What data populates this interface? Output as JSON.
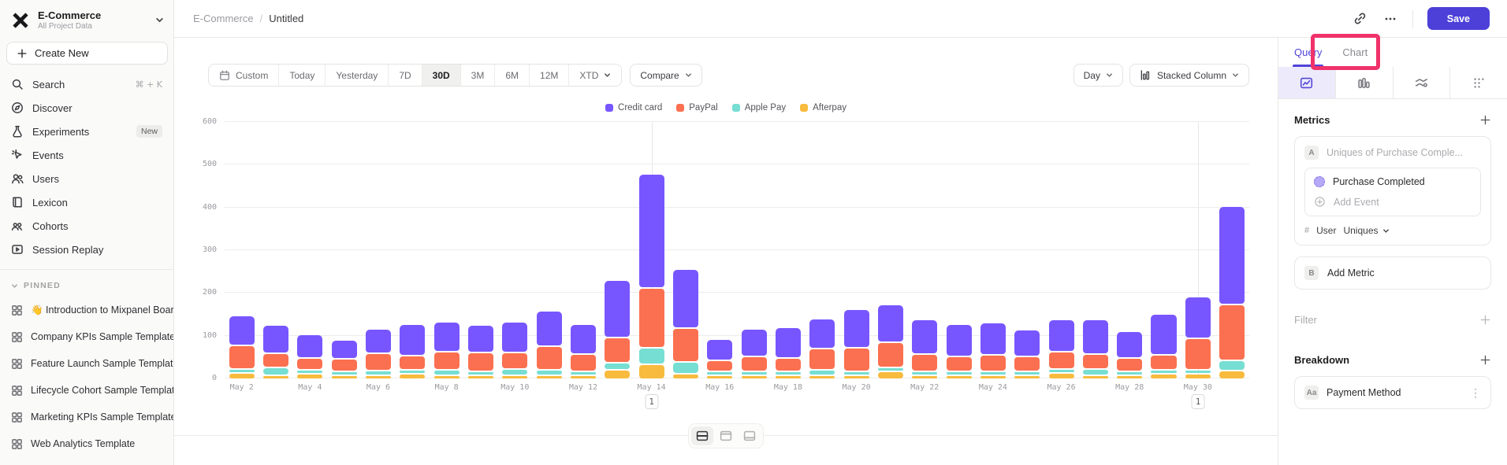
{
  "sidebar": {
    "project": {
      "name": "E-Commerce",
      "subtitle": "All Project Data"
    },
    "create_new_label": "Create New",
    "nav": [
      {
        "label": "Search",
        "icon": "search-icon",
        "shortcut": "⌘ + K"
      },
      {
        "label": "Discover",
        "icon": "discover-icon"
      },
      {
        "label": "Experiments",
        "icon": "experiments-icon",
        "badge": "New"
      },
      {
        "label": "Events",
        "icon": "events-icon"
      },
      {
        "label": "Users",
        "icon": "users-icon"
      },
      {
        "label": "Lexicon",
        "icon": "lexicon-icon"
      },
      {
        "label": "Cohorts",
        "icon": "cohorts-icon"
      },
      {
        "label": "Session Replay",
        "icon": "session-replay-icon"
      }
    ],
    "pinned": {
      "header": "PINNED",
      "items": [
        {
          "label": "👋 Introduction to Mixpanel Boards",
          "icon": "board-icon"
        },
        {
          "label": "Company KPIs Sample Template",
          "icon": "board-icon"
        },
        {
          "label": "Feature Launch Sample Template",
          "icon": "board-icon"
        },
        {
          "label": "Lifecycle Cohort Sample Template",
          "icon": "board-icon"
        },
        {
          "label": "Marketing KPIs Sample Template",
          "icon": "board-icon"
        },
        {
          "label": "Web Analytics Template",
          "icon": "board-icon"
        }
      ]
    }
  },
  "topbar": {
    "breadcrumb": {
      "root": "E-Commerce",
      "separator": "/",
      "current": "Untitled"
    },
    "link_icon": "link-icon",
    "more_icon": "more-horizontal-icon",
    "save_label": "Save"
  },
  "toolbar": {
    "ranges": [
      "Custom",
      "Today",
      "Yesterday",
      "7D",
      "30D",
      "3M",
      "6M",
      "12M",
      "XTD"
    ],
    "active_range": "30D",
    "compare_label": "Compare",
    "granularity_label": "Day",
    "chart_type_label": "Stacked Column"
  },
  "panel": {
    "tabs": [
      "Query",
      "Chart"
    ],
    "active_tab": "Query",
    "icon_tabs": [
      {
        "name": "insights-tab",
        "icon": "insights-icon",
        "active": true
      },
      {
        "name": "funnels-tab",
        "icon": "funnels-icon",
        "active": false
      },
      {
        "name": "flows-tab",
        "icon": "flows-icon",
        "active": false
      },
      {
        "name": "retention-tab",
        "icon": "retention-icon",
        "active": false
      }
    ],
    "metrics": {
      "title": "Metrics",
      "metric_a": {
        "badge": "A",
        "placeholder": "Uniques of Purchase Comple...",
        "event": "Purchase Completed",
        "add_event_label": "Add Event",
        "agg_prefix": "#",
        "agg_entity": "User",
        "agg_type": "Uniques"
      },
      "metric_b": {
        "badge": "B",
        "label": "Add Metric"
      }
    },
    "filter": {
      "title": "Filter"
    },
    "breakdown": {
      "title": "Breakdown",
      "property": {
        "badge": "Aa",
        "label": "Payment Method"
      }
    }
  },
  "chart_data": {
    "type": "bar",
    "variant": "stacked-column",
    "title": "",
    "xlabel": "",
    "ylabel": "",
    "ylim": [
      0,
      600
    ],
    "y_ticks": [
      0,
      100,
      200,
      300,
      400,
      500,
      600
    ],
    "x_tick_interval": 2,
    "grid": true,
    "legend_position": "top-center",
    "categories": [
      "May 2",
      "May 3",
      "May 4",
      "May 5",
      "May 6",
      "May 7",
      "May 8",
      "May 9",
      "May 10",
      "May 11",
      "May 12",
      "May 13",
      "May 14",
      "May 15",
      "May 16",
      "May 17",
      "May 18",
      "May 19",
      "May 20",
      "May 21",
      "May 22",
      "May 23",
      "May 24",
      "May 25",
      "May 26",
      "May 27",
      "May 28",
      "May 29",
      "May 30",
      "May 31"
    ],
    "series": [
      {
        "name": "Credit card",
        "color": "#7856ff",
        "values": [
          70,
          65,
          55,
          45,
          58,
          72,
          70,
          63,
          71,
          83,
          71,
          134,
          267,
          138,
          49,
          64,
          72,
          70,
          89,
          87,
          81,
          75,
          76,
          63,
          76,
          81,
          64,
          97,
          97,
          230
        ]
      },
      {
        "name": "PayPal",
        "color": "#fb7050",
        "values": [
          55,
          34,
          28,
          28,
          40,
          34,
          43,
          44,
          40,
          55,
          39,
          60,
          140,
          80,
          25,
          35,
          30,
          50,
          55,
          60,
          40,
          35,
          38,
          35,
          40,
          35,
          30,
          35,
          75,
          130
        ]
      },
      {
        "name": "Apple Pay",
        "color": "#76ded2",
        "values": [
          8,
          18,
          8,
          8,
          10,
          10,
          12,
          8,
          14,
          12,
          10,
          16,
          38,
          28,
          8,
          8,
          10,
          12,
          8,
          8,
          5,
          6,
          8,
          8,
          5,
          15,
          8,
          8,
          8,
          25
        ]
      },
      {
        "name": "Afterpay",
        "color": "#f8bb3d",
        "values": [
          15,
          8,
          12,
          10,
          10,
          12,
          8,
          10,
          8,
          10,
          5,
          22,
          35,
          12,
          10,
          8,
          5,
          5,
          10,
          18,
          10,
          8,
          8,
          8,
          15,
          5,
          10,
          12,
          12,
          20
        ]
      }
    ],
    "stack_order_bottom_to_top": [
      "Afterpay",
      "Apple Pay",
      "PayPal",
      "Credit card"
    ],
    "annotations": [
      {
        "category": "May 14",
        "label": "1"
      },
      {
        "category": "May 30",
        "label": "1"
      }
    ]
  },
  "layout_switcher": {
    "buttons": [
      {
        "name": "layout-split-middle",
        "icon": "layout-middle-icon",
        "active": true
      },
      {
        "name": "layout-panel-top",
        "icon": "layout-top-icon",
        "active": false
      },
      {
        "name": "layout-panel-bottom",
        "icon": "layout-bottom-icon",
        "active": false
      }
    ]
  },
  "highlight": {
    "color": "#f0326b",
    "target": "Chart tab"
  }
}
